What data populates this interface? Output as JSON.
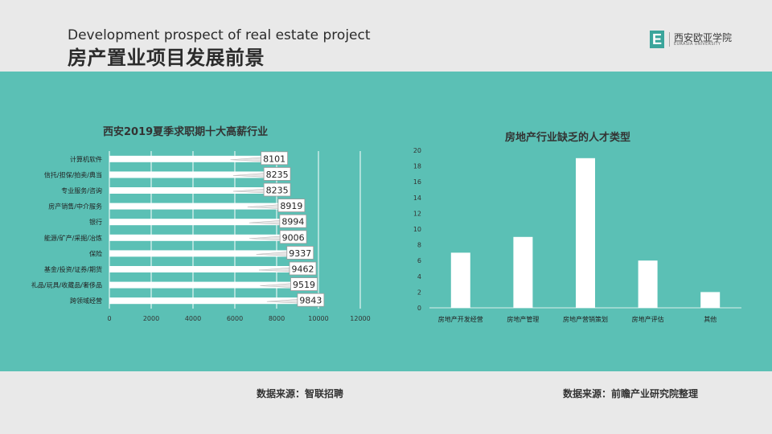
{
  "header": {
    "title_en": "Development prospect of real estate project",
    "title_cn": "房产置业项目发展前景",
    "logo_mark": "E",
    "logo_name": "西安欧亚学院",
    "logo_sub": "EURASIA UNIVERSITY"
  },
  "colors": {
    "band": "#5bc0b5",
    "bar": "#ffffff",
    "grid": "#ffffff",
    "background": "#e9e9e9"
  },
  "chart_data": [
    {
      "type": "bar",
      "orientation": "horizontal",
      "title": "西安2019夏季求职期十大高薪行业",
      "categories": [
        "计算机软件",
        "信托/担保/拍卖/典当",
        "专业服务/咨询",
        "房产销售/中介服务",
        "银行",
        "能源/矿产/采掘/冶炼",
        "保险",
        "基金/投资/证券/期货",
        "礼品/玩具/收藏品/奢侈品",
        "跨领域经营"
      ],
      "values": [
        8101,
        8235,
        8235,
        8919,
        8994,
        9006,
        9337,
        9462,
        9519,
        9843
      ],
      "xlim": [
        0,
        12000
      ],
      "xticks": [
        0,
        2000,
        4000,
        6000,
        8000,
        10000,
        12000
      ],
      "grid": true,
      "data_labels": true
    },
    {
      "type": "bar",
      "title": "房地产行业缺乏的人才类型",
      "categories": [
        "房地产开发经营",
        "房地产管理",
        "房地产营销策划",
        "房地产评估",
        "其他"
      ],
      "values": [
        7,
        9,
        19,
        6,
        2
      ],
      "ylim": [
        0,
        20
      ],
      "yticks": [
        0,
        2,
        4,
        6,
        8,
        10,
        12,
        14,
        16,
        18,
        20
      ],
      "grid": false
    }
  ],
  "footer": {
    "source_left": "数据来源：智联招聘",
    "source_right": "数据来源：前瞻产业研究院整理"
  }
}
